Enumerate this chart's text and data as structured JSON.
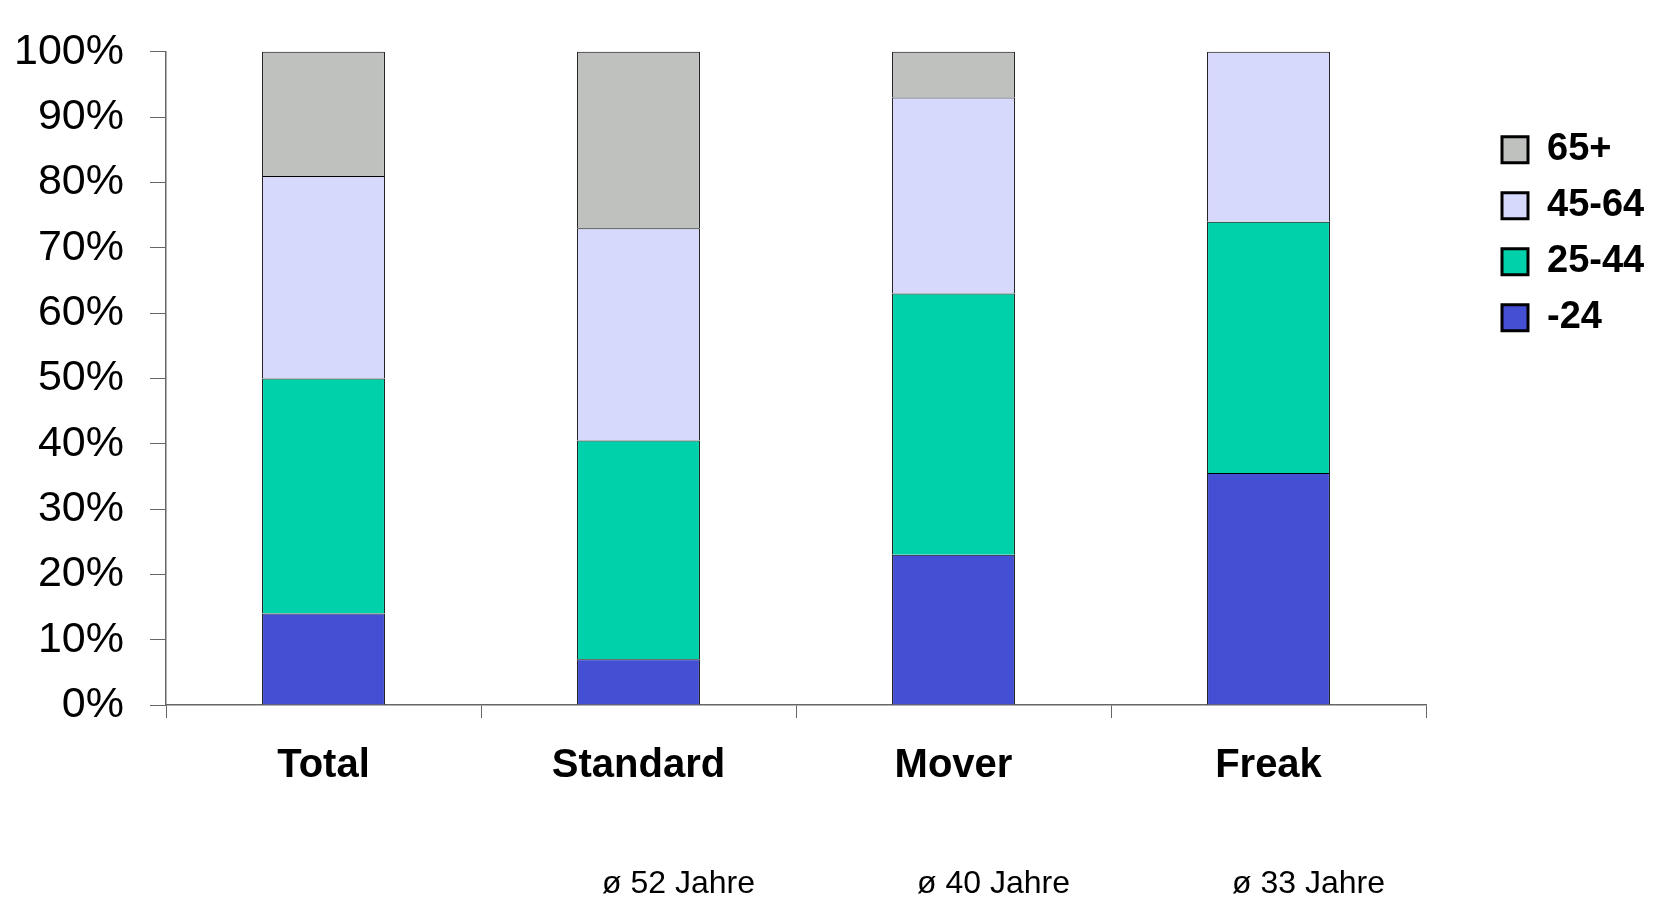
{
  "chart_data": {
    "type": "bar",
    "stacked": true,
    "categories": [
      "Total",
      "Standard",
      "Mover",
      "Freak"
    ],
    "series": [
      {
        "name": "-24",
        "color": "#444fd4",
        "values": [
          14,
          7,
          23,
          35.5
        ]
      },
      {
        "name": "25-44",
        "color": "#00d1aa",
        "values": [
          36,
          33.5,
          40,
          38.5
        ]
      },
      {
        "name": "45-64",
        "color": "#d6d8fc",
        "values": [
          31,
          32.5,
          30,
          26
        ]
      },
      {
        "name": "65+",
        "color": "#bfc1bf",
        "values": [
          19,
          27,
          7,
          0
        ]
      }
    ],
    "ylim": [
      0,
      100
    ],
    "yticks": [
      {
        "value": 0,
        "label": "0%"
      },
      {
        "value": 10,
        "label": "10%"
      },
      {
        "value": 20,
        "label": "20%"
      },
      {
        "value": 30,
        "label": "30%"
      },
      {
        "value": 40,
        "label": "40%"
      },
      {
        "value": 50,
        "label": "50%"
      },
      {
        "value": 60,
        "label": "60%"
      },
      {
        "value": 70,
        "label": "70%"
      },
      {
        "value": 80,
        "label": "80%"
      },
      {
        "value": 90,
        "label": "90%"
      },
      {
        "value": 100,
        "label": "100%"
      }
    ],
    "grid": false,
    "legend": "top right",
    "annotations": [
      "ø 52 Jahre",
      "ø 40 Jahre",
      "ø 33 Jahre"
    ]
  }
}
